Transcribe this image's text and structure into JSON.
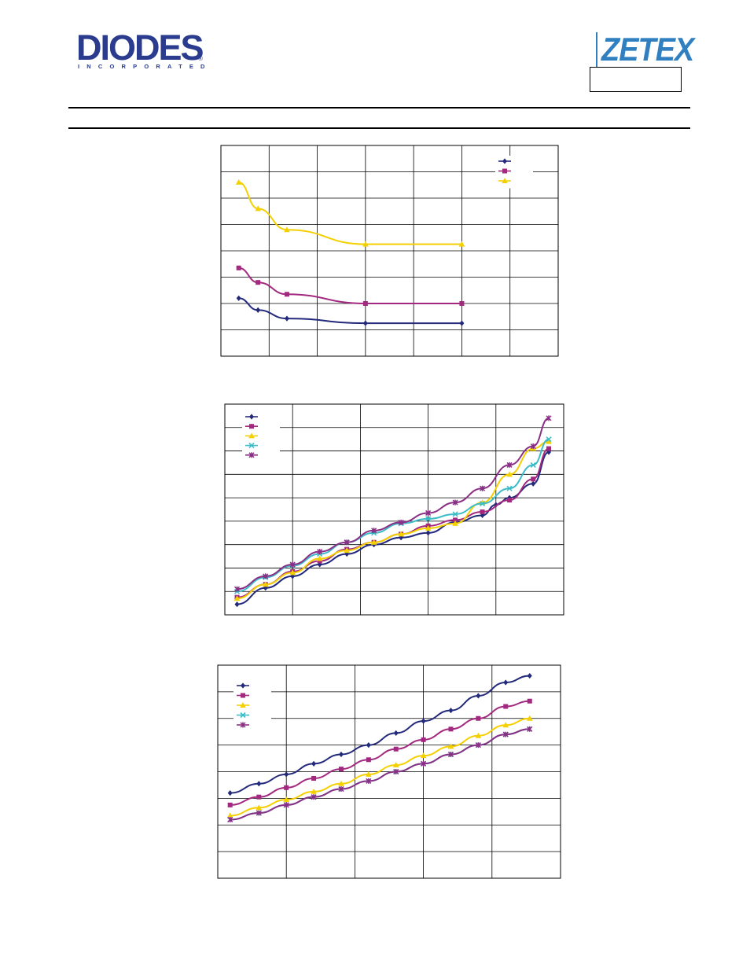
{
  "header": {
    "diodes_logo_text": "DIODES",
    "diodes_logo_subtext": "INCORPORATED",
    "diodes_logo_reg": "®",
    "zetex_logo_text": "ZETEX"
  },
  "chart_data": [
    {
      "type": "line",
      "grid": true,
      "legend": "top-right",
      "xlim": [
        0,
        7
      ],
      "ylim": [
        0,
        8
      ],
      "series": [
        {
          "color": "#232a7c",
          "marker": "diamond",
          "x": [
            0.37,
            0.77,
            1.37,
            3.0,
            5.0
          ],
          "y": [
            2.2,
            1.75,
            1.43,
            1.25,
            1.25
          ]
        },
        {
          "color": "#a3287f",
          "marker": "square",
          "x": [
            0.37,
            0.77,
            1.37,
            3.0,
            5.0
          ],
          "y": [
            3.35,
            2.8,
            2.35,
            2.0,
            2.0
          ]
        },
        {
          "color": "#f5d000",
          "marker": "triangle",
          "x": [
            0.37,
            0.77,
            1.37,
            3.0,
            5.0
          ],
          "y": [
            6.6,
            5.6,
            4.8,
            4.25,
            4.25
          ]
        }
      ]
    },
    {
      "type": "line",
      "grid": true,
      "legend": "top-left",
      "xlim": [
        0,
        5
      ],
      "ylim": [
        0,
        9
      ],
      "series": [
        {
          "color": "#232a7c",
          "marker": "diamond",
          "x": [
            0.18,
            0.6,
            1.0,
            1.4,
            1.8,
            2.2,
            2.6,
            3.0,
            3.4,
            3.8,
            4.2,
            4.55,
            4.78,
            4.0
          ],
          "y": [
            0.45,
            1.15,
            1.65,
            2.15,
            2.6,
            3.0,
            3.3,
            3.5,
            3.95,
            4.25,
            5.0,
            5.6,
            6.95,
            4.7
          ]
        },
        {
          "color": "#a3287f",
          "marker": "square",
          "x": [
            0.18,
            0.6,
            1.0,
            1.4,
            1.8,
            2.2,
            2.6,
            3.0,
            3.4,
            3.8,
            4.2,
            4.55,
            4.78
          ],
          "y": [
            0.75,
            1.3,
            1.85,
            2.3,
            2.8,
            3.1,
            3.45,
            3.8,
            4.05,
            4.4,
            4.9,
            5.8,
            7.1
          ]
        },
        {
          "color": "#f5d000",
          "marker": "triangle",
          "x": [
            0.18,
            0.6,
            1.0,
            1.4,
            1.8,
            2.2,
            2.6,
            3.0,
            3.4,
            3.8,
            4.2,
            4.55,
            4.78
          ],
          "y": [
            0.7,
            1.3,
            1.8,
            2.4,
            2.75,
            3.1,
            3.45,
            3.7,
            3.9,
            4.8,
            6.0,
            7.1,
            7.4
          ]
        },
        {
          "color": "#3cbcc8",
          "marker": "x",
          "x": [
            0.18,
            0.6,
            1.0,
            1.4,
            1.8,
            2.2,
            2.6,
            3.0,
            3.4,
            3.8,
            4.2,
            4.55,
            4.78
          ],
          "y": [
            1.0,
            1.6,
            2.1,
            2.6,
            3.1,
            3.5,
            3.9,
            4.1,
            4.3,
            4.75,
            5.4,
            6.4,
            7.5
          ]
        },
        {
          "color": "#8a2f86",
          "marker": "star",
          "x": [
            0.18,
            0.6,
            1.0,
            1.4,
            1.8,
            2.2,
            2.6,
            3.0,
            3.4,
            3.8,
            4.2,
            4.55,
            4.78
          ],
          "y": [
            1.1,
            1.65,
            2.15,
            2.7,
            3.1,
            3.6,
            3.95,
            4.35,
            4.8,
            5.4,
            6.4,
            7.2,
            8.4
          ]
        }
      ]
    },
    {
      "type": "line",
      "grid": true,
      "legend": "top-left",
      "xlim": [
        0,
        5
      ],
      "ylim": [
        0,
        8
      ],
      "series": [
        {
          "color": "#232a7c",
          "marker": "diamond",
          "x": [
            0.18,
            0.6,
            1.0,
            1.4,
            1.8,
            2.2,
            2.6,
            3.0,
            3.4,
            3.8,
            4.2,
            4.55
          ],
          "y": [
            3.2,
            3.55,
            3.9,
            4.3,
            4.65,
            5.0,
            5.45,
            5.9,
            6.3,
            6.85,
            7.35,
            7.6
          ]
        },
        {
          "color": "#a3287f",
          "marker": "square",
          "x": [
            0.18,
            0.6,
            1.0,
            1.4,
            1.8,
            2.2,
            2.6,
            3.0,
            3.4,
            3.8,
            4.2,
            4.55
          ],
          "y": [
            2.75,
            3.05,
            3.4,
            3.75,
            4.1,
            4.45,
            4.85,
            5.2,
            5.6,
            6.0,
            6.45,
            6.65
          ]
        },
        {
          "color": "#f5d000",
          "marker": "triangle",
          "x": [
            0.18,
            0.6,
            1.0,
            1.4,
            1.8,
            2.2,
            2.6,
            3.0,
            3.4,
            3.8,
            4.2,
            4.55
          ],
          "y": [
            2.35,
            2.65,
            2.95,
            3.25,
            3.55,
            3.9,
            4.25,
            4.6,
            4.95,
            5.35,
            5.75,
            6.0
          ]
        },
        {
          "color": "#3cbcc8",
          "marker": "x",
          "x": [
            0.18,
            0.6,
            1.0,
            1.4,
            1.8,
            2.2,
            2.6,
            3.0,
            3.4,
            3.8,
            4.2,
            4.55
          ],
          "y": [
            2.2,
            2.45,
            2.75,
            3.05,
            3.35,
            3.65,
            4.0,
            4.3,
            4.65,
            5.0,
            5.4,
            5.6
          ]
        },
        {
          "color": "#8a2f86",
          "marker": "star",
          "x": [
            0.18,
            0.6,
            1.0,
            1.4,
            1.8,
            2.2,
            2.6,
            3.0,
            3.4,
            3.8,
            4.2,
            4.55
          ],
          "y": [
            2.2,
            2.45,
            2.75,
            3.05,
            3.35,
            3.65,
            4.0,
            4.3,
            4.65,
            5.0,
            5.4,
            5.6
          ]
        }
      ]
    }
  ]
}
